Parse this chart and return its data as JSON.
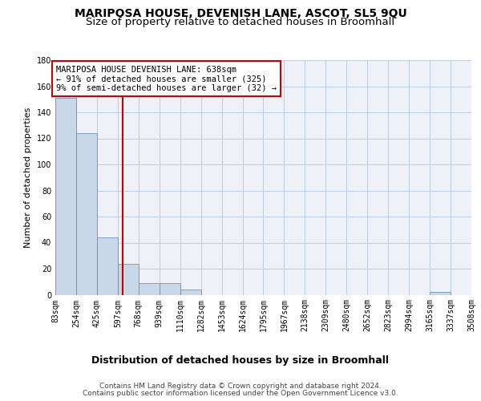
{
  "title": "MARIPOSA HOUSE, DEVENISH LANE, ASCOT, SL5 9QU",
  "subtitle": "Size of property relative to detached houses in Broomhall",
  "xlabel": "Distribution of detached houses by size in Broomhall",
  "ylabel": "Number of detached properties",
  "bar_color": "#c8d8e8",
  "bar_edge_color": "#5588aa",
  "grid_color": "#c0ccdd",
  "background_color": "#eef2f8",
  "vline_x": 638,
  "vline_color": "#cc0000",
  "annotation_line1": "MARIPOSA HOUSE DEVENISH LANE: 638sqm",
  "annotation_line2": "← 91% of detached houses are smaller (325)",
  "annotation_line3": "9% of semi-detached houses are larger (32) →",
  "annotation_box_color": "#cc0000",
  "bin_edges": [
    83,
    254,
    425,
    597,
    768,
    939,
    1110,
    1282,
    1453,
    1624,
    1795,
    1967,
    2138,
    2309,
    2480,
    2652,
    2823,
    2994,
    3165,
    3337,
    3508
  ],
  "bar_heights": [
    151,
    124,
    44,
    24,
    9,
    9,
    4,
    0,
    0,
    0,
    0,
    0,
    0,
    0,
    0,
    0,
    0,
    0,
    2,
    0
  ],
  "ylim": [
    0,
    180
  ],
  "yticks": [
    0,
    20,
    40,
    60,
    80,
    100,
    120,
    140,
    160,
    180
  ],
  "footer_line1": "Contains HM Land Registry data © Crown copyright and database right 2024.",
  "footer_line2": "Contains public sector information licensed under the Open Government Licence v3.0.",
  "title_fontsize": 10,
  "subtitle_fontsize": 9.5,
  "xlabel_fontsize": 9,
  "ylabel_fontsize": 8,
  "tick_fontsize": 7,
  "annotation_fontsize": 7.5,
  "footer_fontsize": 6.5
}
